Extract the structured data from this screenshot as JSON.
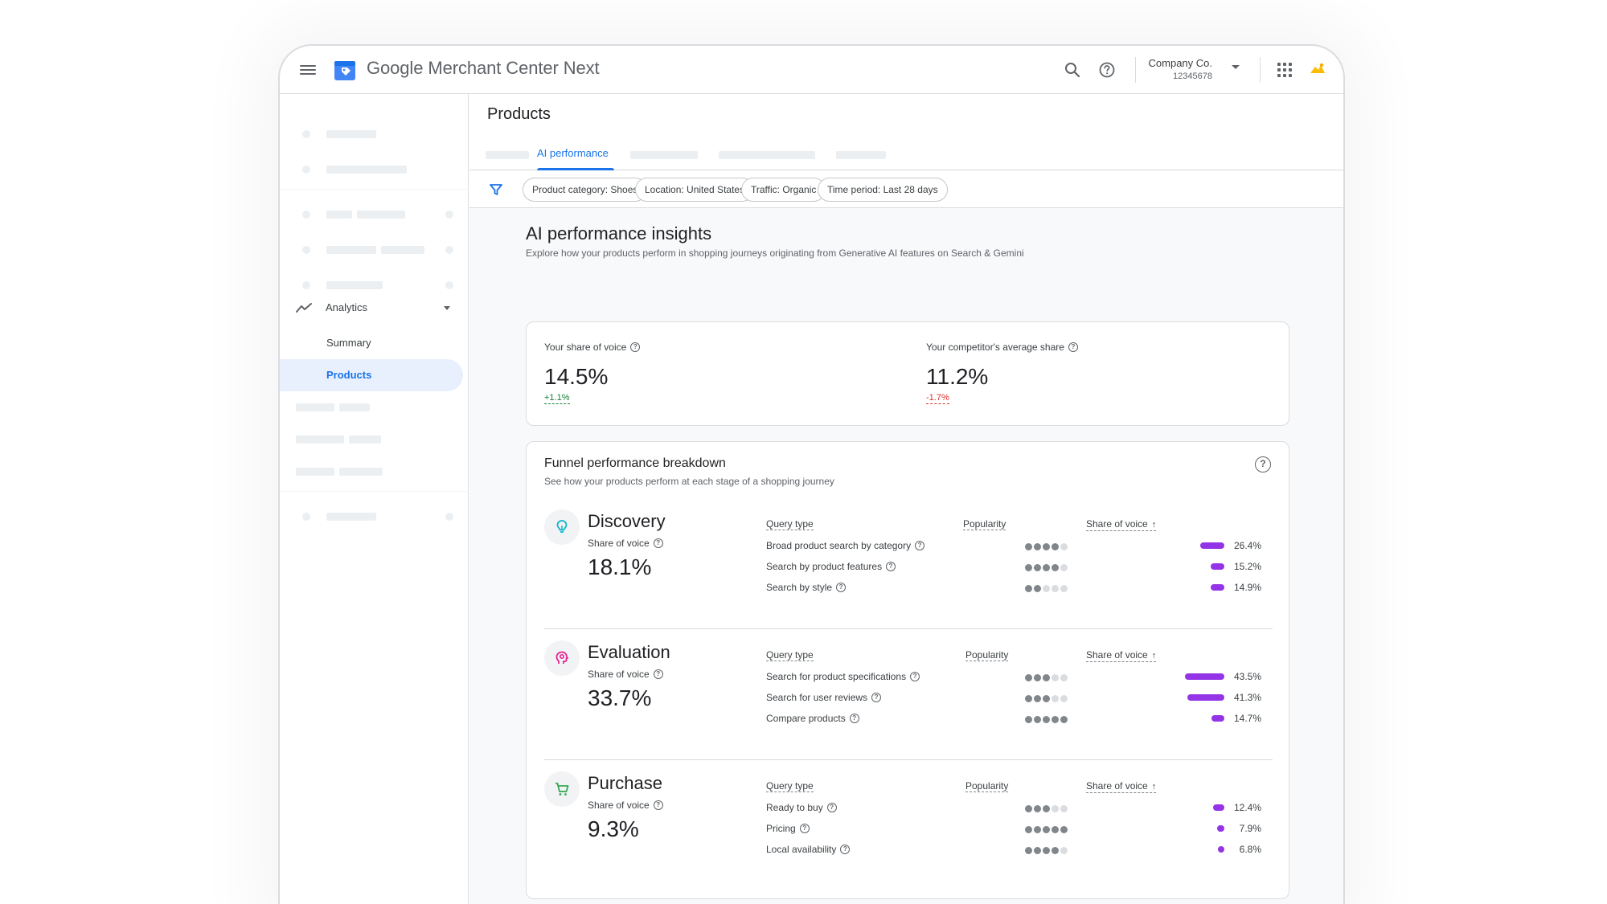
{
  "app": {
    "title_google": "Google",
    "title_rest": "Merchant Center Next"
  },
  "account": {
    "name": "Company Co.",
    "id": "12345678"
  },
  "sidebar": {
    "analytics_label": "Analytics",
    "items": [
      {
        "label": "Summary"
      },
      {
        "label": "Products"
      }
    ]
  },
  "page": {
    "title": "Products"
  },
  "tabs": {
    "active_label": "AI performance"
  },
  "filters": [
    "Product category: Shoes",
    "Location: United States",
    "Traffic: Organic",
    "Time period: Last 28 days"
  ],
  "insights": {
    "title": "AI performance insights",
    "subtitle": "Explore how your products perform in shopping journeys originating from Generative AI features on Search & Gemini"
  },
  "metrics": {
    "yours": {
      "label": "Your share of voice",
      "value": "14.5%",
      "delta": "+1.1%"
    },
    "competitor": {
      "label": "Your competitor's average share",
      "value": "11.2%",
      "delta": "-1.7%"
    }
  },
  "funnel": {
    "title": "Funnel performance breakdown",
    "subtitle": "See how your products perform at each stage of a shopping journey",
    "col_query": "Query type",
    "col_popularity": "Popularity",
    "col_sov": "Share of voice",
    "sov_label": "Share of voice",
    "stages": [
      {
        "name": "Discovery",
        "sov": "18.1%",
        "rows": [
          {
            "query": "Broad product search by category",
            "popularity": 4,
            "sov_text": "26.4%",
            "sov": 26.4
          },
          {
            "query": "Search by product features",
            "popularity": 4,
            "sov_text": "15.2%",
            "sov": 15.2
          },
          {
            "query": "Search by style",
            "popularity": 2,
            "sov_text": "14.9%",
            "sov": 14.9
          }
        ]
      },
      {
        "name": "Evaluation",
        "sov": "33.7%",
        "rows": [
          {
            "query": "Search for product specifications",
            "popularity": 3,
            "sov_text": "43.5%",
            "sov": 43.5
          },
          {
            "query": "Search for user reviews",
            "popularity": 3,
            "sov_text": "41.3%",
            "sov": 41.3
          },
          {
            "query": "Compare products",
            "popularity": 5,
            "sov_text": "14.7%",
            "sov": 14.7
          }
        ]
      },
      {
        "name": "Purchase",
        "sov": "9.3%",
        "rows": [
          {
            "query": "Ready to buy",
            "popularity": 3,
            "sov_text": "12.4%",
            "sov": 12.4
          },
          {
            "query": "Pricing",
            "popularity": 5,
            "sov_text": "7.9%",
            "sov": 7.9
          },
          {
            "query": "Local availability",
            "popularity": 4,
            "sov_text": "6.8%",
            "sov": 6.8
          }
        ]
      }
    ]
  },
  "colors": {
    "accent": "#1a73e8",
    "bar": "#9334e6",
    "positive": "#188038",
    "negative": "#d93025"
  },
  "icons": {
    "menu": "menu-icon",
    "search": "search-icon",
    "help": "help-icon",
    "apps": "apps-icon",
    "filter": "filter-icon",
    "discovery": "lightbulb-icon",
    "evaluation": "head-icon",
    "purchase": "cart-icon"
  }
}
